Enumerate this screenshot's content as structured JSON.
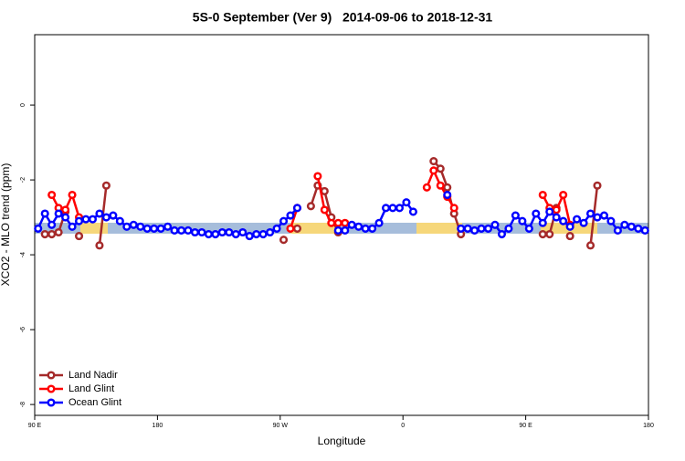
{
  "chart_data": {
    "type": "line",
    "title": "5S-0 September (Ver 9)   2014-09-06 to 2018-12-31",
    "x_label": "Longitude",
    "y_label": "XCO2 - MLO trend (ppm)",
    "xlim": [
      90,
      540
    ],
    "ylim": [
      -8.29,
      1.88
    ],
    "xticks": [
      {
        "value": 90,
        "label": "90 E"
      },
      180,
      {
        "value": 270,
        "label": "90 W"
      },
      {
        "value": 360,
        "label": "0"
      },
      {
        "value": 450,
        "label": "90 E"
      },
      {
        "value": 540,
        "label": "180"
      }
    ],
    "yticks": [
      0,
      -2,
      -4,
      -6,
      -8
    ],
    "legend": "bottom-left",
    "x": [
      92.5,
      97.5,
      102.5,
      107.5,
      112.5,
      117.5,
      122.5,
      127.5,
      132.5,
      137.5,
      142.5,
      147.5,
      152.5,
      157.5,
      162.5,
      167.5,
      172.5,
      177.5,
      182.5,
      187.5,
      192.5,
      197.5,
      202.5,
      207.5,
      212.5,
      217.5,
      222.5,
      227.5,
      232.5,
      237.5,
      242.5,
      247.5,
      252.5,
      257.5,
      262.5,
      267.5,
      272.5,
      277.5,
      282.5,
      287.5,
      292.5,
      297.5,
      302.5,
      307.5,
      312.5,
      317.5,
      322.5,
      327.5,
      332.5,
      337.5,
      342.5,
      347.5,
      352.5,
      357.5,
      362.5,
      367.5,
      372.5,
      377.5,
      382.5,
      387.5,
      392.5,
      397.5,
      402.5,
      407.5,
      412.5,
      417.5,
      422.5,
      427.5,
      432.5,
      437.5,
      442.5,
      447.5,
      452.5,
      457.5,
      462.5,
      467.5,
      472.5,
      477.5,
      482.5,
      487.5,
      492.5,
      497.5,
      502.5,
      507.5,
      512.5,
      517.5,
      522.5,
      527.5,
      532.5,
      537.5
    ],
    "series": [
      {
        "name": "Land Nadir",
        "color": "#a52a2a",
        "values": [
          null,
          -3.45,
          -3.45,
          -3.4,
          -2.85,
          null,
          -3.5,
          null,
          null,
          -3.75,
          -2.15,
          null,
          null,
          null,
          null,
          null,
          null,
          null,
          null,
          null,
          null,
          null,
          null,
          null,
          null,
          null,
          null,
          null,
          null,
          null,
          null,
          null,
          null,
          null,
          null,
          null,
          -3.6,
          null,
          -3.3,
          null,
          -2.7,
          -2.15,
          -2.3,
          -3.0,
          -3.4,
          null,
          null,
          null,
          null,
          null,
          null,
          null,
          null,
          null,
          null,
          null,
          null,
          null,
          -1.5,
          -1.7,
          -2.2,
          -2.9,
          -3.45,
          null,
          null,
          null,
          null,
          null,
          null,
          null,
          null,
          null,
          null,
          null,
          -3.45,
          -3.45,
          -2.75,
          null,
          -3.5,
          null,
          null,
          -3.75,
          -2.15,
          null,
          null,
          null,
          null,
          null,
          null,
          null
        ]
      },
      {
        "name": "Land Glint",
        "color": "#ff0000",
        "values": [
          null,
          null,
          -2.4,
          -2.75,
          -2.8,
          -2.4,
          -3.0,
          null,
          null,
          null,
          null,
          null,
          null,
          null,
          null,
          null,
          null,
          null,
          null,
          null,
          null,
          null,
          null,
          null,
          null,
          null,
          null,
          null,
          null,
          null,
          null,
          null,
          null,
          null,
          null,
          null,
          null,
          -3.3,
          -2.75,
          null,
          null,
          -1.9,
          -2.8,
          -3.15,
          -3.15,
          -3.15,
          null,
          null,
          null,
          null,
          null,
          null,
          null,
          null,
          null,
          null,
          null,
          -2.2,
          -1.75,
          -2.15,
          -2.45,
          -2.75,
          null,
          null,
          null,
          null,
          null,
          null,
          null,
          null,
          null,
          null,
          null,
          null,
          -2.4,
          -2.75,
          -2.8,
          -2.4,
          -3.2,
          null,
          null,
          null,
          null,
          null,
          null,
          null,
          null,
          null,
          null,
          null
        ]
      },
      {
        "name": "Ocean Glint",
        "color": "#0000ff",
        "values": [
          -3.3,
          -2.9,
          -3.2,
          -2.9,
          -3.0,
          -3.25,
          -3.1,
          -3.05,
          -3.05,
          -2.9,
          -3.0,
          -2.95,
          -3.1,
          -3.25,
          -3.2,
          -3.25,
          -3.3,
          -3.3,
          -3.3,
          -3.25,
          -3.35,
          -3.35,
          -3.35,
          -3.4,
          -3.4,
          -3.45,
          -3.45,
          -3.4,
          -3.4,
          -3.45,
          -3.4,
          -3.5,
          -3.45,
          -3.45,
          -3.4,
          -3.3,
          -3.1,
          -2.95,
          -2.75,
          null,
          null,
          null,
          null,
          null,
          -3.35,
          -3.35,
          -3.2,
          -3.25,
          -3.3,
          -3.3,
          -3.15,
          -2.75,
          -2.75,
          -2.75,
          -2.6,
          -2.85,
          null,
          null,
          null,
          null,
          -2.4,
          null,
          -3.3,
          -3.3,
          -3.35,
          -3.3,
          -3.3,
          -3.2,
          -3.45,
          -3.3,
          -2.95,
          -3.1,
          -3.3,
          -2.9,
          -3.15,
          -2.85,
          -3.0,
          -3.1,
          -3.25,
          -3.05,
          -3.15,
          -2.9,
          -3.0,
          -2.95,
          -3.1,
          -3.35,
          -3.2,
          -3.25,
          -3.3,
          -3.35
        ]
      }
    ]
  }
}
